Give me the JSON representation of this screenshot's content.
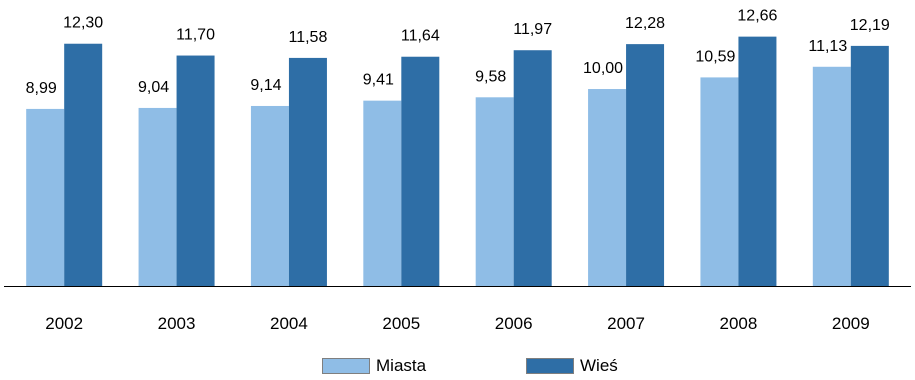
{
  "chart_data": {
    "type": "bar",
    "categories": [
      "2002",
      "2003",
      "2004",
      "2005",
      "2006",
      "2007",
      "2008",
      "2009"
    ],
    "series": [
      {
        "name": "Miasta",
        "color": "#8fbde6",
        "values": [
          8.99,
          9.04,
          9.14,
          9.41,
          9.58,
          10.0,
          10.59,
          11.13
        ],
        "labels": [
          "8,99",
          "9,04",
          "9,14",
          "9,41",
          "9,58",
          "10,00",
          "10,59",
          "11,13"
        ]
      },
      {
        "name": "Wieś",
        "color": "#2e6ea6",
        "values": [
          12.3,
          11.7,
          11.58,
          11.64,
          11.97,
          12.28,
          12.66,
          12.19
        ],
        "labels": [
          "12,30",
          "11,70",
          "11,58",
          "11,64",
          "11,97",
          "12,28",
          "12,66",
          "12,19"
        ]
      }
    ],
    "ylim": [
      0,
      13.2
    ],
    "grid": false,
    "legend_position": "bottom-center",
    "title": "",
    "xlabel": "",
    "ylabel": ""
  }
}
